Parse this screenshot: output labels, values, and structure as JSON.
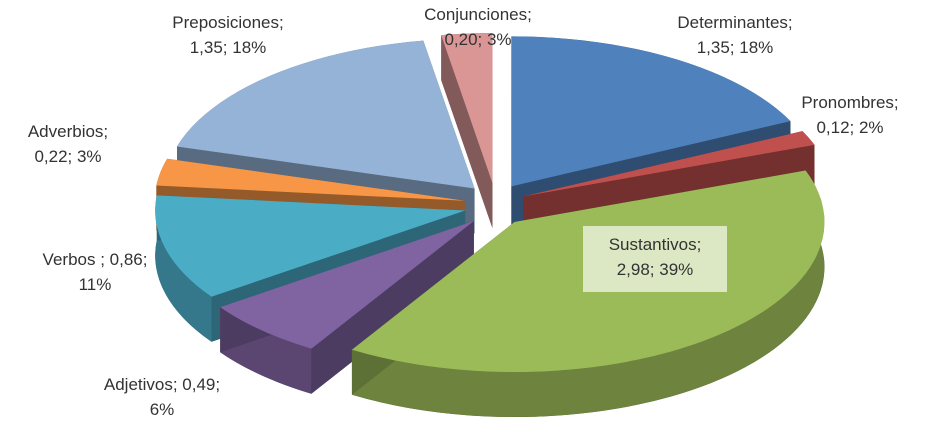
{
  "chart_data": {
    "type": "pie",
    "labels": [
      "Determinantes; 1,35; 18%",
      "Pronombres; 0,12; 2%",
      "Sustantivos; 2,98; 39%",
      "Adjetivos; 0,49; 6%",
      "Verbos ; 0,86; 11%",
      "Adverbios; 0,22; 3%",
      "Preposiciones; 1,35; 18%",
      "Conjunciones; 0,20; 3%"
    ],
    "values": [
      1.35,
      0.12,
      2.98,
      0.49,
      0.86,
      0.22,
      1.35,
      0.2
    ],
    "colors": [
      "#4f81bd",
      "#c0504d",
      "#9bbb59",
      "#8064a2",
      "#4bacc6",
      "#f79646",
      "#95b3d7",
      "#d99694"
    ]
  }
}
